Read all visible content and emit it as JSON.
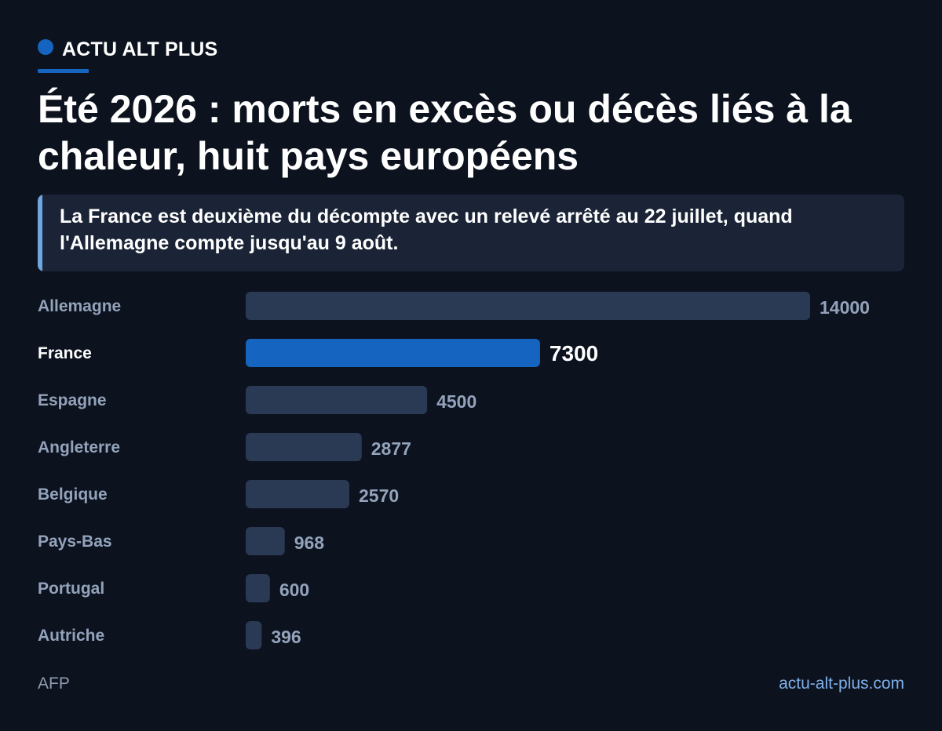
{
  "brand": {
    "name": "ACTU ALT PLUS",
    "color": "#1565c0"
  },
  "header": {
    "title": "Été 2026 : morts en excès ou décès liés à la chaleur, huit pays européens",
    "subtitle": "La France est deuxième du décompte avec un relevé arrêté au 22 juillet, quand l'Allemagne compte jusqu'au 9 août."
  },
  "colors": {
    "highlight": "#1565c0",
    "bar": "#2b3a54",
    "subtitle_accent": "#6ea6e0",
    "link": "#7fb0ea",
    "label": "#93a3bb",
    "label_highlight": "#ffffff"
  },
  "chart_data": {
    "type": "bar",
    "orientation": "horizontal",
    "categories": [
      "Allemagne",
      "France",
      "Espagne",
      "Angleterre",
      "Belgique",
      "Pays-Bas",
      "Portugal",
      "Autriche"
    ],
    "values": [
      14000,
      7300,
      4500,
      2877,
      2570,
      968,
      600,
      396
    ],
    "value_labels": [
      "14000",
      "7300",
      "4500",
      "2877",
      "2570",
      "968",
      "600",
      "396"
    ],
    "highlight": "France",
    "title": "Été 2026 : morts en excès ou décès liés à la chaleur, huit pays européens",
    "xlabel": "",
    "ylabel": "",
    "grid": false,
    "legend": "none"
  },
  "footer": {
    "source": "AFP",
    "site": "actu-alt-plus.com"
  }
}
